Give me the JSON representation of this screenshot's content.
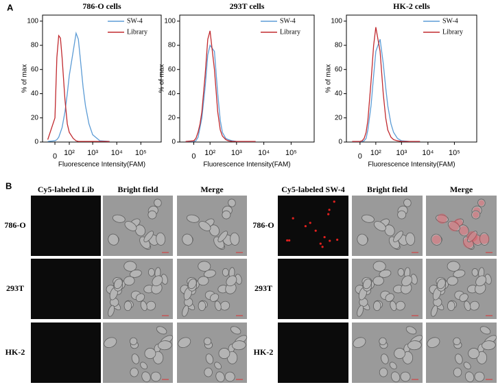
{
  "panel_a": {
    "label": "A"
  },
  "chart_data": [
    {
      "type": "line",
      "title": "786-O cells",
      "x_label": "Fluorescence Intensity(FAM)",
      "y_label": "% of max",
      "xscale": "asinh",
      "xlim": [
        -80,
        700000
      ],
      "ylim": [
        0,
        105
      ],
      "legend": "upper right",
      "xticks": [
        0,
        {
          "value": 100,
          "label": "10²"
        },
        {
          "value": 1000,
          "label": "10³"
        },
        {
          "value": 10000,
          "label": "10⁴"
        },
        {
          "value": 100000,
          "label": "10⁵"
        }
      ],
      "yticks": [
        0,
        20,
        40,
        60,
        80,
        100
      ],
      "x": [
        -40,
        0,
        10,
        20,
        30,
        40,
        60,
        80,
        100,
        150,
        200,
        250,
        300,
        400,
        500,
        700,
        1000,
        2000,
        5000
      ],
      "series": [
        {
          "name": "SW-4",
          "color": "#5b9bd5",
          "values": [
            0.5,
            1,
            2,
            4,
            8,
            12,
            25,
            40,
            55,
            75,
            90,
            85,
            70,
            45,
            30,
            15,
            6,
            1,
            0.5
          ]
        },
        {
          "name": "Library",
          "color": "#c0282d",
          "values": [
            2,
            20,
            70,
            88,
            86,
            70,
            35,
            15,
            8,
            3,
            1,
            0.5,
            0.5,
            0.5,
            0.5,
            0.5,
            0.5,
            0.5,
            0.5
          ]
        }
      ]
    },
    {
      "type": "line",
      "title": "293T cells",
      "x_label": "Fluorescence Intensity(FAM)",
      "y_label": "% of max",
      "xscale": "asinh",
      "xlim": [
        -80,
        700000
      ],
      "ylim": [
        0,
        105
      ],
      "legend": "upper right",
      "xticks": [
        0,
        {
          "value": 100,
          "label": "10²"
        },
        {
          "value": 1000,
          "label": "10³"
        },
        {
          "value": 10000,
          "label": "10⁴"
        },
        {
          "value": 100000,
          "label": "10⁵"
        }
      ],
      "yticks": [
        0,
        20,
        40,
        60,
        80,
        100
      ],
      "x": [
        -40,
        0,
        10,
        20,
        30,
        40,
        60,
        80,
        100,
        150,
        200,
        250,
        300,
        400,
        500,
        700,
        1000,
        2000,
        5000
      ],
      "series": [
        {
          "name": "SW-4",
          "color": "#5b9bd5",
          "values": [
            0.5,
            0.5,
            1,
            4,
            12,
            20,
            45,
            72,
            80,
            75,
            40,
            18,
            8,
            3,
            2,
            1,
            0.5,
            0.5,
            0.5
          ]
        },
        {
          "name": "Library",
          "color": "#c0282d",
          "values": [
            0.5,
            1,
            3,
            8,
            15,
            25,
            55,
            85,
            92,
            60,
            25,
            10,
            5,
            2,
            1,
            0.5,
            0.5,
            0.5,
            0.5
          ]
        }
      ]
    },
    {
      "type": "line",
      "title": "HK-2 cells",
      "x_label": "Fluorescence Intensity(FAM)",
      "y_label": "% of max",
      "xscale": "asinh",
      "xlim": [
        -80,
        700000
      ],
      "ylim": [
        0,
        105
      ],
      "legend": "upper right",
      "xticks": [
        0,
        {
          "value": 100,
          "label": "10²"
        },
        {
          "value": 1000,
          "label": "10³"
        },
        {
          "value": 10000,
          "label": "10⁴"
        },
        {
          "value": 100000,
          "label": "10⁵"
        }
      ],
      "yticks": [
        0,
        20,
        40,
        60,
        80,
        100
      ],
      "x": [
        -40,
        0,
        10,
        20,
        30,
        40,
        60,
        80,
        100,
        150,
        200,
        250,
        300,
        400,
        500,
        700,
        1000,
        2000,
        5000
      ],
      "series": [
        {
          "name": "SW-4",
          "color": "#5b9bd5",
          "values": [
            0.5,
            0.5,
            0.5,
            1,
            3,
            10,
            30,
            55,
            75,
            85,
            65,
            45,
            30,
            15,
            8,
            3,
            1,
            0.5,
            0.5
          ]
        },
        {
          "name": "Library",
          "color": "#c0282d",
          "values": [
            0.5,
            0.5,
            1,
            3,
            8,
            18,
            50,
            80,
            95,
            75,
            40,
            20,
            10,
            4,
            2,
            1,
            0.5,
            0.5,
            0.5
          ]
        }
      ]
    }
  ],
  "panel_b": {
    "label": "B",
    "groups": [
      {
        "columns": [
          "Cy5-labeled Lib",
          "Bright field",
          "Merge"
        ],
        "rows": [
          "786-O",
          "293T",
          "HK-2"
        ]
      },
      {
        "columns": [
          "Cy5-labeled SW-4",
          "Bright field",
          "Merge"
        ],
        "rows": [
          "786-O",
          "293T",
          "HK-2"
        ]
      }
    ]
  }
}
